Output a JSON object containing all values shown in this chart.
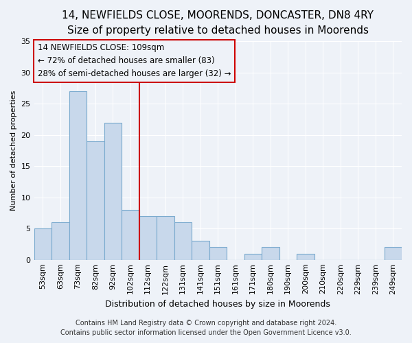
{
  "title1": "14, NEWFIELDS CLOSE, MOORENDS, DONCASTER, DN8 4RY",
  "title2": "Size of property relative to detached houses in Moorends",
  "xlabel": "Distribution of detached houses by size in Moorends",
  "ylabel": "Number of detached properties",
  "categories": [
    "53sqm",
    "63sqm",
    "73sqm",
    "82sqm",
    "92sqm",
    "102sqm",
    "112sqm",
    "122sqm",
    "131sqm",
    "141sqm",
    "151sqm",
    "161sqm",
    "171sqm",
    "180sqm",
    "190sqm",
    "200sqm",
    "210sqm",
    "220sqm",
    "229sqm",
    "239sqm",
    "249sqm"
  ],
  "values": [
    5,
    6,
    27,
    19,
    22,
    8,
    7,
    7,
    6,
    3,
    2,
    0,
    1,
    2,
    0,
    1,
    0,
    0,
    0,
    0,
    2
  ],
  "bar_color": "#c8d8eb",
  "bar_edge_color": "#7aaace",
  "vline_color": "#cc0000",
  "annotation_box_color": "#cc0000",
  "background_color": "#eef2f8",
  "grid_color": "#ffffff",
  "ylim": [
    0,
    35
  ],
  "yticks": [
    0,
    5,
    10,
    15,
    20,
    25,
    30,
    35
  ],
  "footer1": "Contains HM Land Registry data © Crown copyright and database right 2024.",
  "footer2": "Contains public sector information licensed under the Open Government Licence v3.0.",
  "title1_fontsize": 11,
  "title2_fontsize": 9.5,
  "xlabel_fontsize": 9,
  "ylabel_fontsize": 8,
  "tick_fontsize": 8,
  "footer_fontsize": 7,
  "ann_line1": "14 NEWFIELDS CLOSE: 109sqm",
  "ann_line2": "← 72% of detached houses are smaller (83)",
  "ann_line3": "28% of semi-detached houses are larger (32) →"
}
